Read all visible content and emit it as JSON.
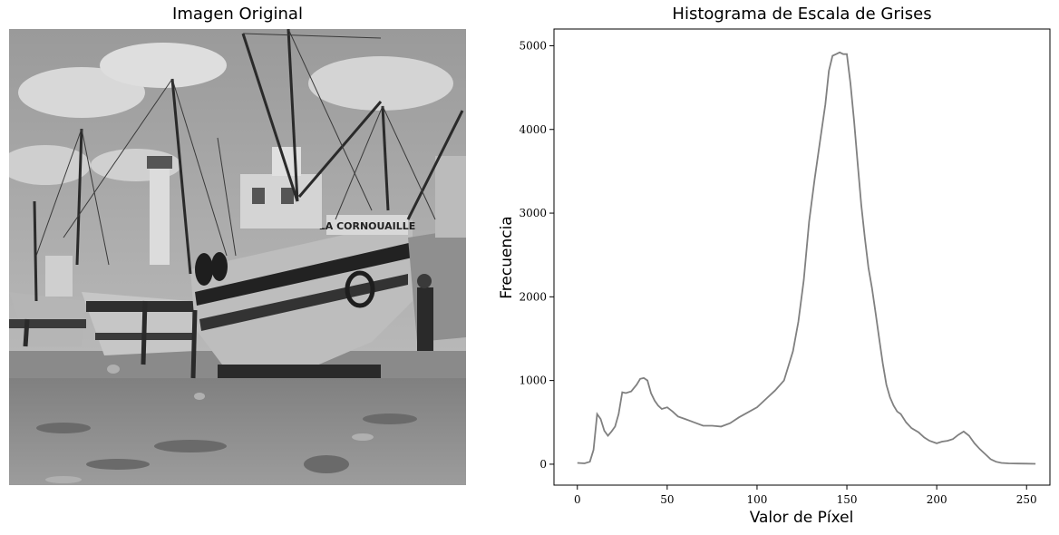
{
  "image_panel": {
    "title": "Imagen Original",
    "hull_text": "LA CORNOUAILLE"
  },
  "chart_data": {
    "type": "line",
    "title": "Histograma de Escala de Grises",
    "xlabel": "Valor de Píxel",
    "ylabel": "Frecuencia",
    "xlim": [
      -13,
      263
    ],
    "ylim": [
      -250,
      5200
    ],
    "xticks": [
      0,
      50,
      100,
      150,
      200,
      250
    ],
    "yticks": [
      0,
      1000,
      2000,
      3000,
      4000,
      5000
    ],
    "grid": false,
    "line_color": "#808080",
    "x": [
      0,
      4,
      7,
      9,
      11,
      13,
      15,
      17,
      19,
      21,
      23,
      25,
      27,
      30,
      33,
      35,
      37,
      39,
      41,
      43,
      45,
      47,
      50,
      53,
      56,
      60,
      65,
      70,
      75,
      80,
      85,
      90,
      95,
      100,
      105,
      110,
      115,
      120,
      123,
      126,
      129,
      132,
      135,
      138,
      140,
      142,
      144,
      146,
      148,
      150,
      152,
      154,
      156,
      158,
      160,
      162,
      164,
      166,
      168,
      170,
      172,
      174,
      176,
      178,
      180,
      183,
      186,
      190,
      193,
      196,
      200,
      203,
      206,
      209,
      212,
      215,
      218,
      221,
      224,
      227,
      230,
      233,
      236,
      240,
      245,
      250,
      255
    ],
    "y": [
      15,
      10,
      30,
      170,
      600,
      540,
      400,
      340,
      390,
      450,
      600,
      860,
      850,
      870,
      950,
      1020,
      1030,
      1000,
      850,
      760,
      700,
      660,
      680,
      630,
      570,
      540,
      500,
      460,
      460,
      450,
      490,
      560,
      620,
      680,
      780,
      880,
      1000,
      1350,
      1700,
      2200,
      2900,
      3400,
      3850,
      4300,
      4700,
      4880,
      4900,
      4920,
      4900,
      4900,
      4550,
      4100,
      3600,
      3100,
      2700,
      2350,
      2100,
      1800,
      1500,
      1200,
      950,
      800,
      700,
      630,
      600,
      500,
      430,
      380,
      320,
      280,
      250,
      270,
      280,
      300,
      350,
      390,
      340,
      250,
      180,
      120,
      60,
      30,
      15,
      10,
      8,
      7,
      5
    ]
  }
}
